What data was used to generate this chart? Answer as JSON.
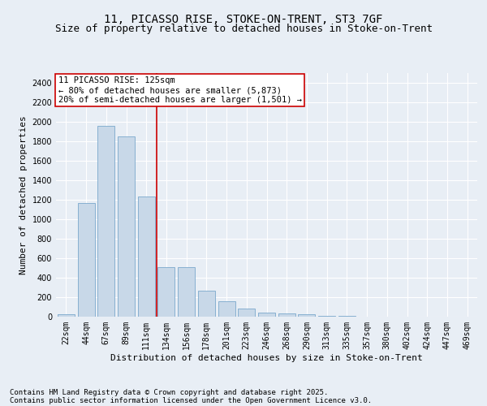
{
  "title_line1": "11, PICASSO RISE, STOKE-ON-TRENT, ST3 7GF",
  "title_line2": "Size of property relative to detached houses in Stoke-on-Trent",
  "xlabel": "Distribution of detached houses by size in Stoke-on-Trent",
  "ylabel": "Number of detached properties",
  "categories": [
    "22sqm",
    "44sqm",
    "67sqm",
    "89sqm",
    "111sqm",
    "134sqm",
    "156sqm",
    "178sqm",
    "201sqm",
    "223sqm",
    "246sqm",
    "268sqm",
    "290sqm",
    "313sqm",
    "335sqm",
    "357sqm",
    "380sqm",
    "402sqm",
    "424sqm",
    "447sqm",
    "469sqm"
  ],
  "values": [
    25,
    1165,
    1960,
    1850,
    1230,
    510,
    510,
    270,
    155,
    85,
    40,
    30,
    28,
    10,
    5,
    4,
    3,
    2,
    2,
    1,
    1
  ],
  "bar_color": "#c8d8e8",
  "bar_edgecolor": "#7aa8cc",
  "vline_color": "#cc0000",
  "annotation_text": "11 PICASSO RISE: 125sqm\n← 80% of detached houses are smaller (5,873)\n20% of semi-detached houses are larger (1,501) →",
  "annotation_box_color": "#ffffff",
  "annotation_box_edgecolor": "#cc0000",
  "ylim": [
    0,
    2500
  ],
  "yticks": [
    0,
    200,
    400,
    600,
    800,
    1000,
    1200,
    1400,
    1600,
    1800,
    2000,
    2200,
    2400
  ],
  "background_color": "#e8eef5",
  "plot_background": "#e8eef5",
  "grid_color": "#ffffff",
  "footer_line1": "Contains HM Land Registry data © Crown copyright and database right 2025.",
  "footer_line2": "Contains public sector information licensed under the Open Government Licence v3.0.",
  "title_fontsize": 10,
  "subtitle_fontsize": 9,
  "axis_label_fontsize": 8,
  "tick_fontsize": 7,
  "annotation_fontsize": 7.5,
  "footer_fontsize": 6.5
}
